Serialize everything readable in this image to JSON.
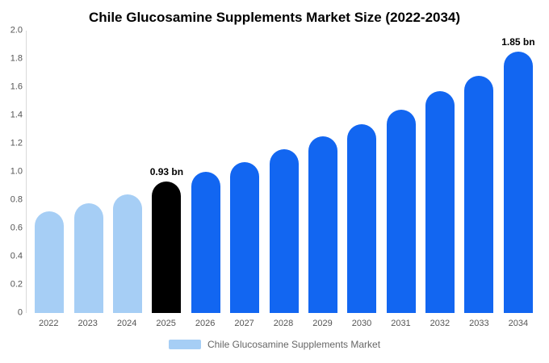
{
  "title": "Chile Glucosamine Supplements Market Size (2022-2034)",
  "legend": {
    "label": "Chile Glucosamine Supplements Market",
    "swatch_color": "#A6CEF5"
  },
  "colors": {
    "past": "#A6CEF5",
    "current": "#000000",
    "forecast": "#1266F1"
  },
  "chart_data": {
    "type": "bar",
    "title": "Chile Glucosamine Supplements Market Size (2022-2034)",
    "xlabel": "",
    "ylabel": "",
    "unit": "bn",
    "categories": [
      "2022",
      "2023",
      "2024",
      "2025",
      "2026",
      "2027",
      "2028",
      "2029",
      "2030",
      "2031",
      "2032",
      "2033",
      "2034"
    ],
    "values": [
      0.72,
      0.78,
      0.84,
      0.93,
      1.0,
      1.07,
      1.16,
      1.25,
      1.34,
      1.44,
      1.57,
      1.68,
      1.85
    ],
    "bar_types": [
      "past",
      "past",
      "past",
      "current",
      "forecast",
      "forecast",
      "forecast",
      "forecast",
      "forecast",
      "forecast",
      "forecast",
      "forecast",
      "forecast"
    ],
    "annotations": [
      {
        "index": 3,
        "text": "0.93 bn"
      },
      {
        "index": 12,
        "text": "1.85 bn"
      }
    ],
    "ylim": [
      0,
      2.0
    ],
    "yticks": [
      {
        "value": 0.0,
        "label": "0"
      },
      {
        "value": 0.2,
        "label": "0.2"
      },
      {
        "value": 0.4,
        "label": "0.4"
      },
      {
        "value": 0.6,
        "label": "0.6"
      },
      {
        "value": 0.8,
        "label": "0.8"
      },
      {
        "value": 1.0,
        "label": "1.0"
      },
      {
        "value": 1.2,
        "label": "1.2"
      },
      {
        "value": 1.4,
        "label": "1.4"
      },
      {
        "value": 1.6,
        "label": "1.6"
      },
      {
        "value": 1.8,
        "label": "1.8"
      },
      {
        "value": 2.0,
        "label": "2.0"
      }
    ],
    "grid": false,
    "legend_position": "bottom"
  }
}
